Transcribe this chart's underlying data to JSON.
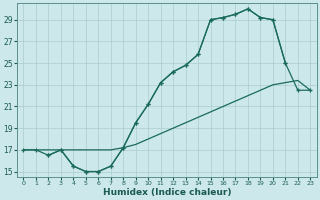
{
  "xlabel": "Humidex (Indice chaleur)",
  "bg_color": "#cce8ea",
  "grid_color": "#aacccc",
  "line_color": "#1a6b5a",
  "xlim": [
    -0.5,
    23.5
  ],
  "ylim": [
    14.5,
    30.5
  ],
  "xticks": [
    0,
    1,
    2,
    3,
    4,
    5,
    6,
    7,
    8,
    9,
    10,
    11,
    12,
    13,
    14,
    15,
    16,
    17,
    18,
    19,
    20,
    21,
    22,
    23
  ],
  "yticks": [
    15,
    17,
    19,
    21,
    23,
    25,
    27,
    29
  ],
  "line1_x": [
    0,
    1,
    2,
    3,
    4,
    5,
    6,
    7,
    8,
    9,
    10,
    11,
    12,
    13,
    14,
    15,
    16,
    17,
    18,
    19,
    20,
    21,
    22,
    23
  ],
  "line1_y": [
    17,
    17,
    16.5,
    17,
    15.5,
    15,
    15,
    15.5,
    17.2,
    19.5,
    21.2,
    23.2,
    24.2,
    24.8,
    25.8,
    29,
    29.2,
    29.5,
    30,
    29.2,
    29,
    25,
    22.5,
    22.5
  ],
  "line2_x": [
    0,
    1,
    2,
    3,
    4,
    5,
    6,
    7,
    8,
    9,
    10,
    11,
    12,
    13,
    14,
    15,
    16,
    17,
    18,
    19,
    20,
    21,
    22,
    23
  ],
  "line2_y": [
    17,
    17,
    17,
    17,
    17,
    17,
    17,
    17,
    17.2,
    17.5,
    18,
    18.5,
    19,
    19.5,
    20,
    20.5,
    21,
    21.5,
    22,
    22.5,
    23,
    23.2,
    23.4,
    22.5
  ],
  "line3_x": [
    2,
    3,
    4,
    5,
    6,
    7,
    8,
    9,
    10,
    11,
    12,
    13,
    14,
    15,
    16,
    17,
    18,
    19,
    20,
    21
  ],
  "line3_y": [
    16.5,
    17,
    15.5,
    15,
    15,
    15.5,
    17.2,
    19.5,
    21.2,
    23.2,
    24.2,
    24.8,
    25.8,
    29,
    29.2,
    29.5,
    30,
    29.2,
    29,
    25
  ]
}
